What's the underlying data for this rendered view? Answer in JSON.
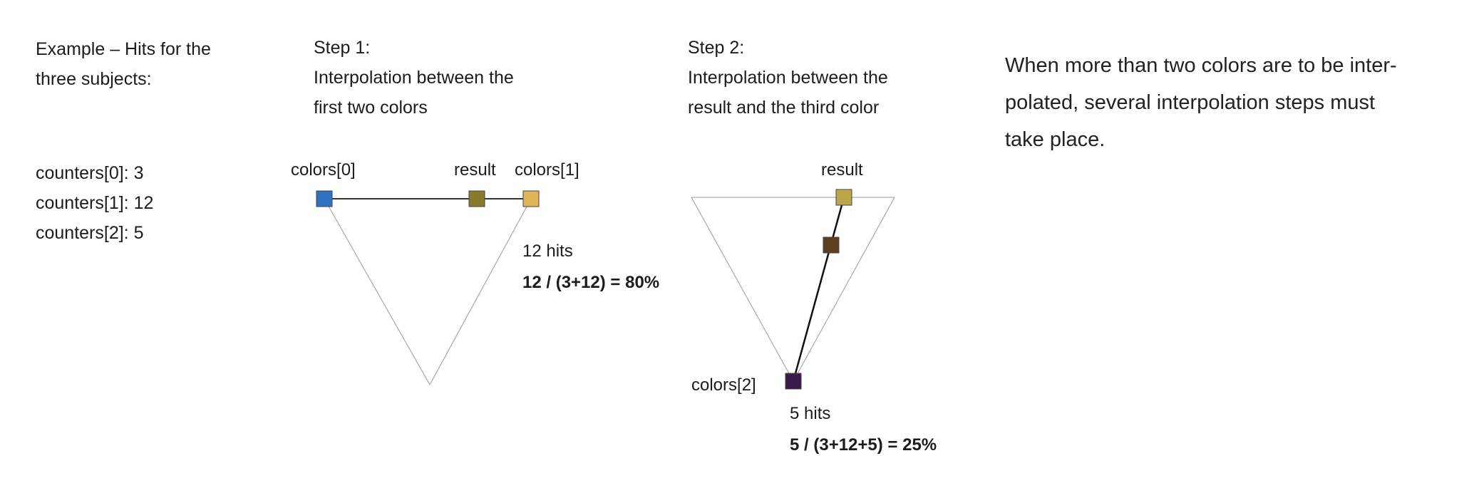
{
  "intro": {
    "lines": [
      "Example – Hits for the",
      "three subjects:"
    ],
    "counters": [
      "counters[0]: 3",
      "counters[1]: 12",
      "counters[2]: 5"
    ]
  },
  "step1": {
    "heading": "Step 1:",
    "lines": [
      "Interpolation between the",
      "first two colors"
    ],
    "label_color0": "colors[0]",
    "label_result": "result",
    "label_color1": "colors[1]",
    "hits": "12 hits",
    "formula": "12 / (3+12) = 80%"
  },
  "step2": {
    "heading": "Step 2:",
    "lines": [
      "Interpolation between the",
      "result and the third color"
    ],
    "label_result": "result",
    "label_color2": "colors[2]",
    "hits": "5 hits",
    "formula": "5 / (3+12+5) = 25%"
  },
  "description": {
    "lines": [
      "When more than two colors are to be inter-",
      "polated, several interpolation steps must",
      "take place."
    ]
  },
  "colors": {
    "color0": "#2f72c2",
    "color1": "#e2b45a",
    "result1": "#8c7a2c",
    "color2": "#3a1a4e",
    "result2_mid": "#5a3e1e",
    "result2_top": "#bca64a"
  }
}
